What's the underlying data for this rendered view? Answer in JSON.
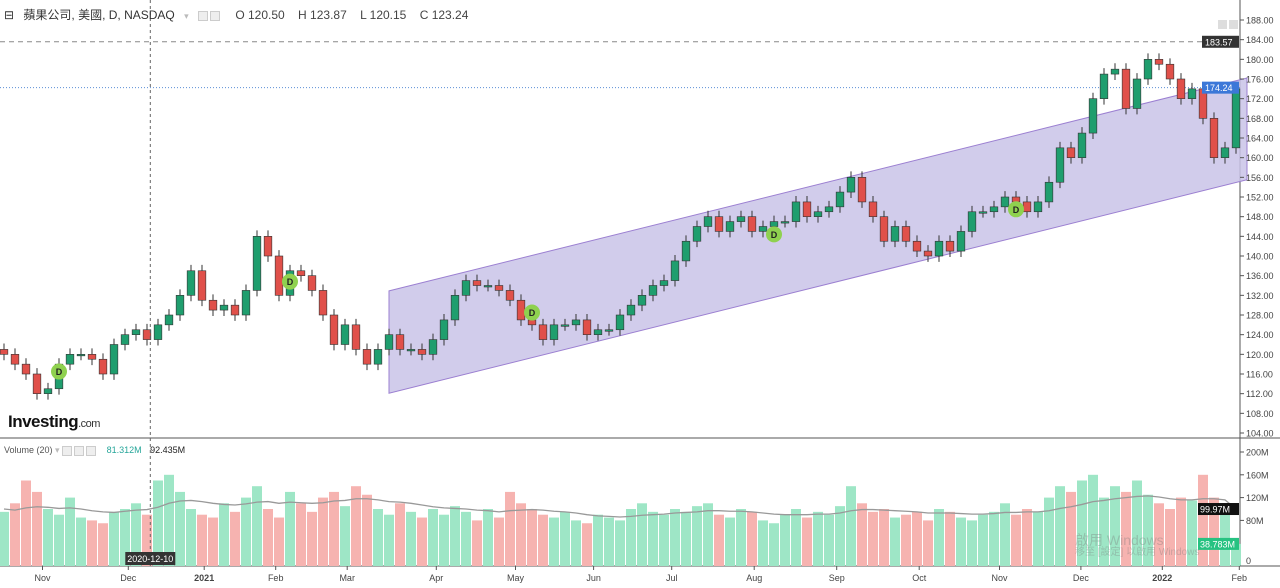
{
  "header": {
    "collapse_icon": "minus-square-icon",
    "symbol": "蘋果公司, 美國, D, NASDAQ",
    "open": "O 120.50",
    "high": "H 123.87",
    "low": "L 120.15",
    "close": "C 123.24"
  },
  "volume_header": {
    "label": "Volume (20)",
    "volume_value": "81.312M",
    "ma_value": "92.435M"
  },
  "logo": {
    "main": "Investing",
    "suffix": ".com"
  },
  "watermark": {
    "line1": "啟用 Windows",
    "line2": "移至 [設定] 以啟用 Windows"
  },
  "chart_data": {
    "type": "candlestick",
    "price_axis": {
      "ylim": [
        104,
        188
      ],
      "ticks": [
        "188.00",
        "184.00",
        "180.00",
        "176.00",
        "172.00",
        "168.00",
        "164.00",
        "160.00",
        "156.00",
        "152.00",
        "148.00",
        "144.00",
        "140.00",
        "136.00",
        "132.00",
        "128.00",
        "124.00",
        "120.00",
        "116.00",
        "112.00",
        "108.00",
        "104.00"
      ]
    },
    "volume_axis": {
      "ylim": [
        0,
        210
      ],
      "ticks": [
        "200M",
        "160M",
        "120M",
        "80M",
        "0"
      ]
    },
    "x_labels": [
      {
        "label": "Nov",
        "at": 3.5
      },
      {
        "label": "Dec",
        "at": 11.3
      },
      {
        "label": "2021",
        "at": 18.2,
        "bold": true
      },
      {
        "label": "Feb",
        "at": 24.7
      },
      {
        "label": "Mar",
        "at": 31.2
      },
      {
        "label": "Apr",
        "at": 39.3
      },
      {
        "label": "May",
        "at": 46.5
      },
      {
        "label": "Jun",
        "at": 53.6
      },
      {
        "label": "Jul",
        "at": 60.7
      },
      {
        "label": "Aug",
        "at": 68.2
      },
      {
        "label": "Sep",
        "at": 75.7
      },
      {
        "label": "Oct",
        "at": 83.2
      },
      {
        "label": "Nov",
        "at": 90.5
      },
      {
        "label": "Dec",
        "at": 97.9
      },
      {
        "label": "2022",
        "at": 105.3,
        "bold": true
      },
      {
        "label": "Feb",
        "at": 112.3
      }
    ],
    "crosshair": {
      "at": 13.3,
      "label": "2020-12-10"
    },
    "closes": [
      120,
      118,
      116,
      112,
      113,
      118,
      120,
      120,
      119,
      116,
      122,
      124,
      125,
      123,
      126,
      128,
      132,
      137,
      131,
      129,
      130,
      128,
      133,
      144,
      140,
      132,
      137,
      136,
      133,
      128,
      122,
      126,
      121,
      118,
      121,
      124,
      121,
      121,
      120,
      123,
      127,
      132,
      135,
      134,
      134,
      133,
      131,
      127,
      126,
      123,
      126,
      126,
      127,
      124,
      125,
      125,
      128,
      130,
      132,
      134,
      135,
      139,
      143,
      146,
      148,
      145,
      147,
      148,
      145,
      146,
      147,
      147,
      151,
      148,
      149,
      150,
      153,
      156,
      151,
      148,
      143,
      146,
      143,
      141,
      140,
      143,
      141,
      145,
      149,
      149,
      150,
      152,
      151,
      149,
      151,
      155,
      162,
      160,
      165,
      172,
      177,
      178,
      170,
      176,
      180,
      179,
      176,
      172,
      174,
      168,
      160,
      162,
      174
    ],
    "volumes": [
      95,
      110,
      150,
      130,
      100,
      90,
      120,
      85,
      80,
      75,
      95,
      100,
      110,
      90,
      150,
      160,
      130,
      100,
      90,
      85,
      110,
      95,
      120,
      140,
      100,
      85,
      130,
      110,
      95,
      120,
      130,
      105,
      140,
      125,
      100,
      90,
      110,
      95,
      85,
      100,
      90,
      105,
      95,
      80,
      100,
      85,
      130,
      110,
      100,
      90,
      85,
      95,
      80,
      75,
      90,
      85,
      80,
      100,
      110,
      95,
      90,
      100,
      95,
      105,
      110,
      90,
      85,
      100,
      95,
      80,
      75,
      90,
      100,
      85,
      95,
      90,
      105,
      140,
      110,
      95,
      100,
      85,
      90,
      95,
      80,
      100,
      95,
      85,
      80,
      90,
      95,
      110,
      90,
      100,
      95,
      120,
      140,
      130,
      150,
      160,
      120,
      140,
      130,
      150,
      125,
      110,
      100,
      120,
      115,
      160,
      120,
      110,
      38.78
    ],
    "volume_ma": [
      100,
      98,
      102,
      104,
      103,
      101,
      102,
      100,
      97,
      95,
      94,
      96,
      98,
      99,
      103,
      110,
      114,
      115,
      113,
      110,
      108,
      107,
      109,
      112,
      113,
      110,
      112,
      111,
      110,
      111,
      114,
      115,
      118,
      118,
      116,
      113,
      112,
      110,
      107,
      104,
      102,
      101,
      100,
      98,
      97,
      95,
      97,
      98,
      99,
      98,
      96,
      95,
      93,
      90,
      88,
      87,
      86,
      87,
      89,
      90,
      91,
      93,
      94,
      95,
      97,
      97,
      96,
      96,
      95,
      93,
      91,
      90,
      90,
      90,
      91,
      91,
      93,
      97,
      99,
      99,
      98,
      97,
      96,
      95,
      93,
      93,
      93,
      92,
      91,
      91,
      92,
      94,
      94,
      95,
      95,
      97,
      101,
      104,
      108,
      113,
      115,
      118,
      120,
      122,
      123,
      121,
      118,
      116,
      116,
      118,
      118,
      116,
      99.97
    ],
    "channel": {
      "start": 35,
      "end": 113,
      "upper": [
        132.9,
        176.2
      ],
      "lower": [
        112.1,
        155.5
      ]
    },
    "dividend_markers": [
      {
        "at": 5,
        "price": 116.5,
        "label": "D"
      },
      {
        "at": 26,
        "price": 134.8,
        "label": "D"
      },
      {
        "at": 48,
        "price": 128.5,
        "label": "D"
      },
      {
        "at": 70,
        "price": 144.4,
        "label": "D"
      },
      {
        "at": 92,
        "price": 149.5,
        "label": "D"
      }
    ],
    "price_lines": [
      {
        "value": 183.57,
        "label": "183.57",
        "style": "dashed",
        "color": "#888888",
        "tag_bg": "#333333"
      },
      {
        "value": 174.24,
        "label": "174.24",
        "style": "dotted",
        "color": "#5b8fd6",
        "tag_bg": "#3c78d8"
      }
    ],
    "volume_tags": [
      {
        "value": 99.97,
        "label": "99.97M",
        "bg": "#111111"
      },
      {
        "value": 38.78,
        "label": "38.783M",
        "bg": "#26c281"
      }
    ],
    "colors": {
      "up": "#1f9e6e",
      "down": "#e0504a",
      "vol_up": "#9ee6c6",
      "vol_down": "#f6b3b0",
      "channel_fill": "#c9c3e8",
      "channel_stroke": "#9b7fd1",
      "ma": "#999999",
      "marker": "#8fd14f"
    }
  }
}
